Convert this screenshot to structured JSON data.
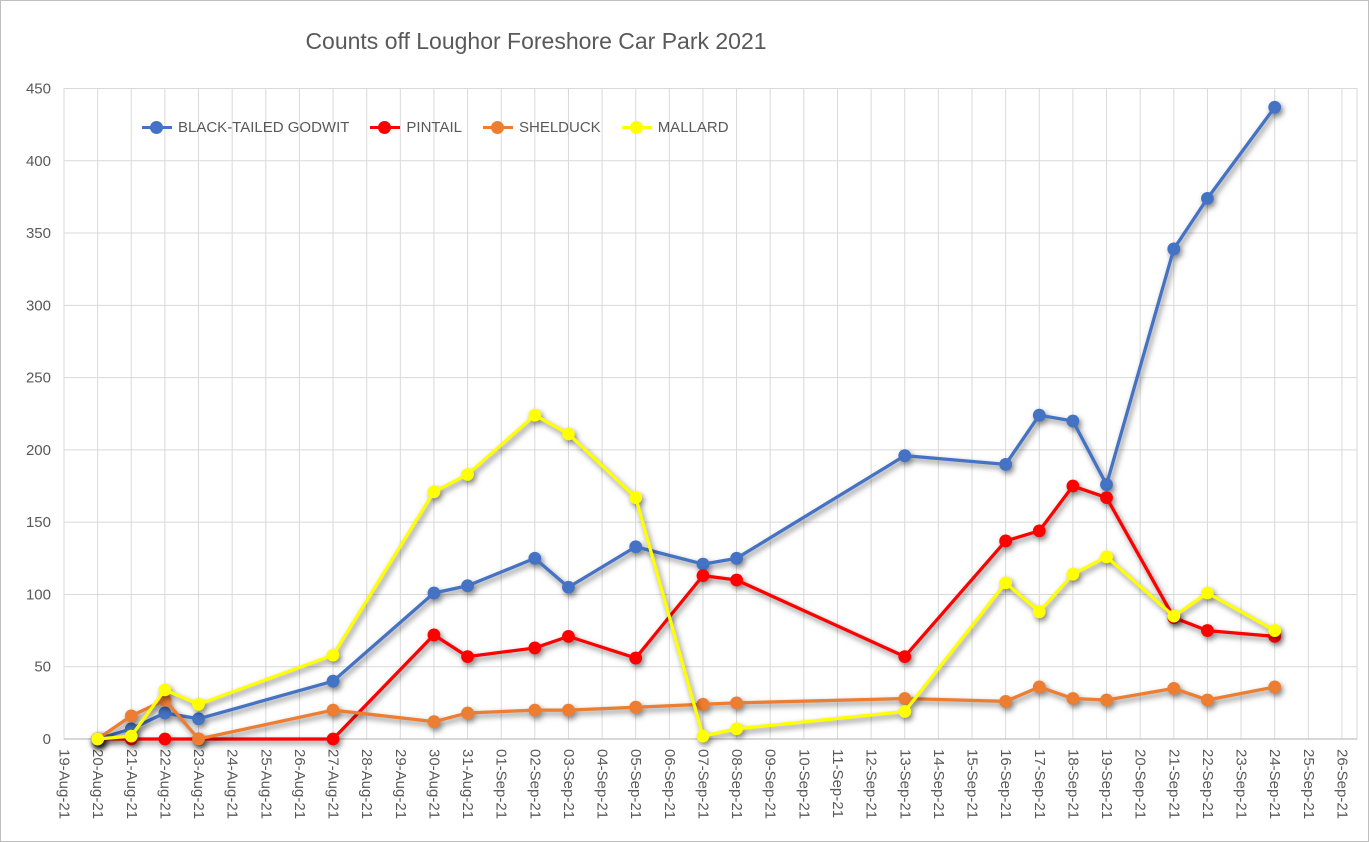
{
  "chart_data": {
    "type": "line",
    "title": "Counts off Loughor Foreshore Car Park 2021",
    "xlabel": "",
    "ylabel": "",
    "ylim": [
      0,
      450
    ],
    "y_ticks": [
      0,
      50,
      100,
      150,
      200,
      250,
      300,
      350,
      400,
      450
    ],
    "grid": true,
    "legend_position": "top-inside",
    "x_axis_labels": [
      "19-Aug-21",
      "20-Aug-21",
      "21-Aug-21",
      "22-Aug-21",
      "23-Aug-21",
      "24-Aug-21",
      "25-Aug-21",
      "26-Aug-21",
      "27-Aug-21",
      "28-Aug-21",
      "29-Aug-21",
      "30-Aug-21",
      "31-Aug-21",
      "01-Sep-21",
      "02-Sep-21",
      "03-Sep-21",
      "04-Sep-21",
      "05-Sep-21",
      "06-Sep-21",
      "07-Sep-21",
      "08-Sep-21",
      "09-Sep-21",
      "10-Sep-21",
      "11-Sep-21",
      "12-Sep-21",
      "13-Sep-21",
      "14-Sep-21",
      "15-Sep-21",
      "16-Sep-21",
      "17-Sep-21",
      "18-Sep-21",
      "19-Sep-21",
      "20-Sep-21",
      "21-Sep-21",
      "22-Sep-21",
      "23-Sep-21",
      "24-Sep-21",
      "25-Sep-21",
      "26-Sep-21"
    ],
    "categories": [
      "20-Aug-21",
      "21-Aug-21",
      "22-Aug-21",
      "23-Aug-21",
      "27-Aug-21",
      "30-Aug-21",
      "31-Aug-21",
      "02-Sep-21",
      "03-Sep-21",
      "05-Sep-21",
      "07-Sep-21",
      "08-Sep-21",
      "13-Sep-21",
      "16-Sep-21",
      "17-Sep-21",
      "18-Sep-21",
      "19-Sep-21",
      "21-Sep-21",
      "22-Sep-21",
      "24-Sep-21"
    ],
    "series": [
      {
        "name": "BLACK-TAILED GODWIT",
        "color": "#4472C4",
        "values": [
          0,
          7,
          18,
          14,
          40,
          101,
          106,
          125,
          105,
          133,
          121,
          125,
          196,
          190,
          224,
          220,
          176,
          339,
          374,
          437
        ]
      },
      {
        "name": "PINTAIL",
        "color": "#FF0000",
        "values": [
          0,
          0,
          0,
          0,
          0,
          72,
          57,
          63,
          71,
          56,
          113,
          110,
          57,
          137,
          144,
          175,
          167,
          84,
          75,
          71
        ]
      },
      {
        "name": "SHELDUCK",
        "color": "#ED7D31",
        "values": [
          0,
          16,
          27,
          0,
          20,
          12,
          18,
          20,
          20,
          22,
          24,
          25,
          28,
          26,
          36,
          28,
          27,
          35,
          27,
          36
        ]
      },
      {
        "name": "MALLARD",
        "color": "#FFFF00",
        "values": [
          0,
          2,
          34,
          24,
          58,
          171,
          183,
          224,
          211,
          167,
          2,
          7,
          19,
          108,
          88,
          114,
          126,
          85,
          101,
          75
        ]
      }
    ],
    "colors": {
      "text": "#595959",
      "gridline": "#D9D9D9",
      "axis_line": "#BFBFBF",
      "background": "#FFFFFF"
    }
  }
}
